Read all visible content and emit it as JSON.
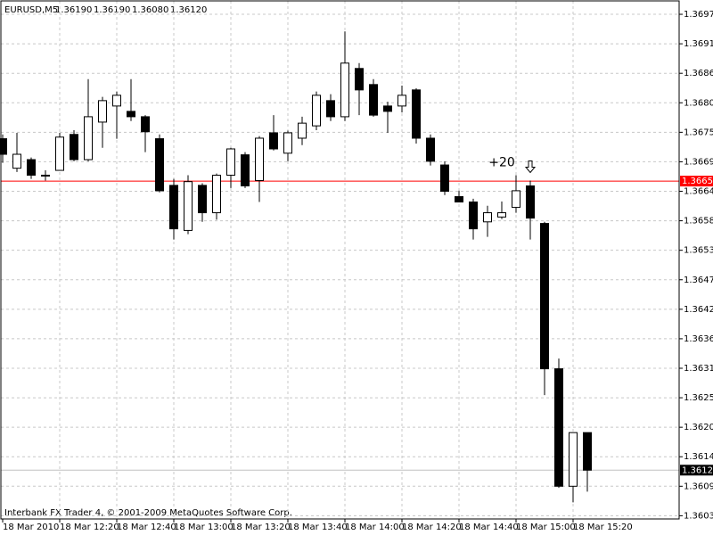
{
  "chart_data": {
    "type": "candlestick",
    "title": "EURUSD,M5",
    "last_labels": [
      "1.36190",
      "1.36190",
      "1.36080",
      "1.36120"
    ],
    "footer": "Interbank FX Trader 4, © 2001-2009 MetaQuotes Software Corp.",
    "categories": [
      "18 Mar 2010",
      null,
      null,
      null,
      "18 Mar 12:20",
      null,
      null,
      null,
      "18 Mar 12:40",
      null,
      null,
      null,
      "18 Mar 13:00",
      null,
      null,
      null,
      "18 Mar 13:20",
      null,
      null,
      null,
      "18 Mar 13:40",
      null,
      null,
      null,
      "18 Mar 14:00",
      null,
      null,
      null,
      "18 Mar 14:20",
      null,
      null,
      null,
      "18 Mar 14:40",
      null,
      null,
      null,
      "18 Mar 15:00",
      null,
      null,
      null,
      "18 Mar 15:20",
      null
    ],
    "open": [
      1.36738,
      1.36683,
      1.36699,
      1.3667,
      1.36679,
      1.36746,
      1.36699,
      1.36769,
      1.36799,
      1.36789,
      1.36779,
      1.36738,
      1.36651,
      1.36567,
      1.36651,
      1.366,
      1.3667,
      1.36708,
      1.3666,
      1.36749,
      1.36711,
      1.36739,
      1.36762,
      1.36809,
      1.36779,
      1.36869,
      1.36839,
      1.36799,
      1.36799,
      1.36829,
      1.36739,
      1.36689,
      1.3663,
      1.3662,
      1.36583,
      1.36592,
      1.3661,
      1.3665,
      1.3658,
      1.36309,
      1.3609,
      1.3619
    ],
    "high": [
      1.36746,
      1.36749,
      1.36703,
      1.36679,
      1.36749,
      1.36754,
      1.36849,
      1.36816,
      1.36826,
      1.36849,
      1.36782,
      1.36746,
      1.36663,
      1.3667,
      1.36655,
      1.36673,
      1.36721,
      1.36713,
      1.36743,
      1.36782,
      1.36753,
      1.36779,
      1.36826,
      1.36821,
      1.36938,
      1.36879,
      1.36849,
      1.36807,
      1.36837,
      1.36832,
      1.36746,
      1.36696,
      1.36641,
      1.36626,
      1.36613,
      1.36621,
      1.3667,
      1.3666,
      1.36583,
      1.36328,
      1.3619,
      1.3619
    ],
    "low": [
      1.36693,
      1.36676,
      1.36663,
      1.3666,
      1.36679,
      1.36696,
      1.36696,
      1.36721,
      1.36738,
      1.36771,
      1.36713,
      1.36638,
      1.3655,
      1.3656,
      1.36583,
      1.36587,
      1.36646,
      1.36646,
      1.3662,
      1.36716,
      1.36696,
      1.36726,
      1.36754,
      1.36771,
      1.36771,
      1.36782,
      1.36779,
      1.36749,
      1.36787,
      1.36729,
      1.36688,
      1.36633,
      1.3662,
      1.3655,
      1.36555,
      1.36588,
      1.366,
      1.3655,
      1.3626,
      1.36087,
      1.3606,
      1.3608
    ],
    "close": [
      1.36709,
      1.36709,
      1.3667,
      1.3667,
      1.36741,
      1.36699,
      1.36779,
      1.36809,
      1.36819,
      1.36779,
      1.36751,
      1.36641,
      1.3657,
      1.36658,
      1.366,
      1.3667,
      1.36719,
      1.3665,
      1.36739,
      1.36719,
      1.36749,
      1.36767,
      1.36819,
      1.36779,
      1.36879,
      1.36829,
      1.36782,
      1.36789,
      1.36819,
      1.36739,
      1.36696,
      1.3664,
      1.3662,
      1.3657,
      1.366,
      1.366,
      1.36641,
      1.3659,
      1.36309,
      1.3609,
      1.3619,
      1.3612
    ],
    "up_color": "#ffffff",
    "down_color": "#000000",
    "ylim": [
      1.36029,
      1.36995
    ],
    "yticks": [
      {
        "value": 1.3697,
        "label": "1.36970"
      },
      1.36915,
      {
        "value": 1.3686,
        "label": "1.36860"
      },
      1.36805,
      {
        "value": 1.3675,
        "label": "1.36750"
      },
      1.36695,
      {
        "value": 1.3664,
        "label": "1.36640"
      },
      1.36585,
      {
        "value": 1.3653,
        "label": "1.36530"
      },
      1.36475,
      {
        "value": 1.3642,
        "label": "1.36420"
      },
      1.36365,
      {
        "value": 1.3631,
        "label": "1.36310"
      },
      1.36255,
      {
        "value": 1.362,
        "label": "1.36200"
      },
      1.36145,
      {
        "value": 1.3609,
        "label": "1.36090"
      },
      1.36035
    ],
    "grid": true,
    "price_lines": [
      {
        "value": 1.36659,
        "color": "#ff0000"
      },
      {
        "value": 1.3612,
        "label": "1.36120",
        "color": "#c0c0c0",
        "box_color": "#000000"
      }
    ],
    "annotations": [
      {
        "text": "+20",
        "index": 37
      }
    ]
  }
}
